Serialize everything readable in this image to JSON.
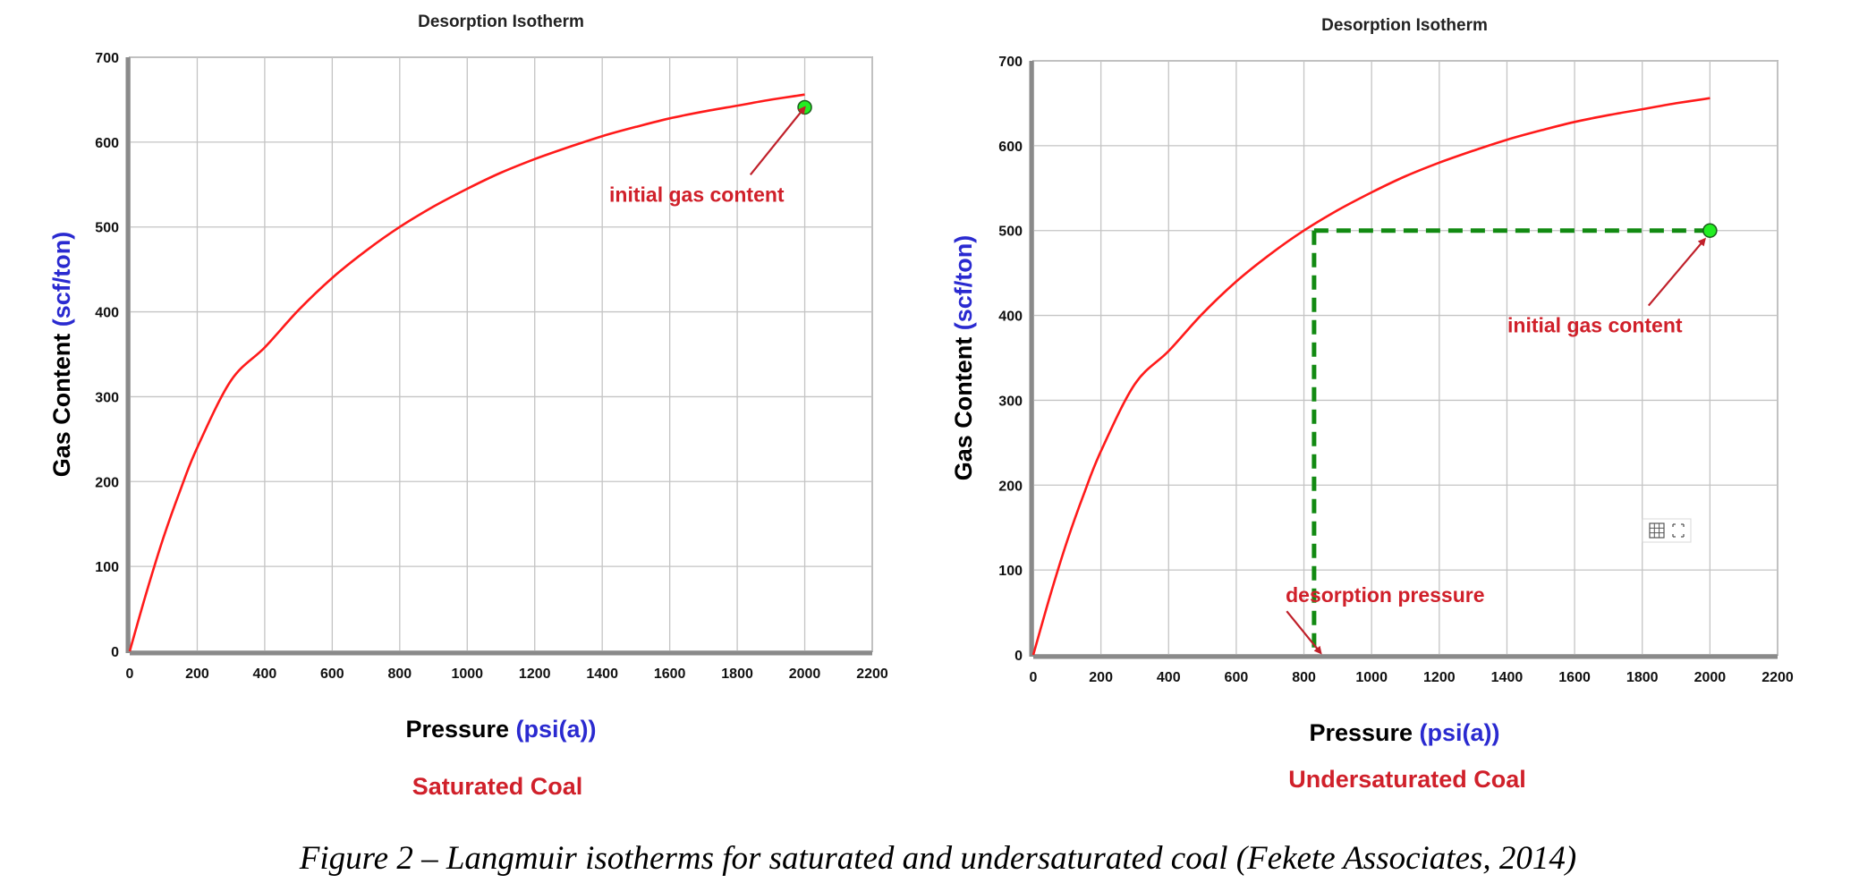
{
  "figure": {
    "caption": "Figure 2 – Langmuir isotherms for saturated and undersaturated coal (Fekete Associates, 2014)"
  },
  "colors": {
    "curve": "#ff1a1a",
    "marker_fill": "#22ee22",
    "guide": "#128a12",
    "annotation": "#d0202a",
    "axis_unit": "#2a2ad0"
  },
  "chart_data": [
    {
      "type": "line",
      "title": "Desorption Isotherm",
      "xlabel": "Pressure",
      "xlabel_unit": "(psi(a))",
      "ylabel": "Gas Content",
      "ylabel_unit": "(scf/ton)",
      "subcaption": "Saturated Coal",
      "xlim": [
        0,
        2200
      ],
      "ylim": [
        0,
        700
      ],
      "xticks": [
        0,
        200,
        400,
        600,
        800,
        1000,
        1200,
        1400,
        1600,
        1800,
        2000,
        2200
      ],
      "yticks": [
        0,
        100,
        200,
        300,
        400,
        500,
        600,
        700
      ],
      "grid": true,
      "series": [
        {
          "x": [
            0,
            50,
            100,
            150,
            200,
            300,
            400,
            500,
            600,
            700,
            800,
            900,
            1000,
            1100,
            1200,
            1300,
            1400,
            1500,
            1600,
            1700,
            1800,
            1900,
            2000
          ],
          "y": [
            0,
            70,
            134,
            190,
            240,
            319,
            358,
            402,
            440,
            472,
            500,
            524,
            545,
            564,
            580,
            594,
            607,
            618,
            628,
            636,
            643,
            650,
            656
          ]
        }
      ],
      "points": [
        {
          "x": 2000,
          "y": 641
        }
      ],
      "guides": [],
      "annotations": [
        {
          "text": "initial gas content",
          "x": 1680,
          "y": 530,
          "target_x": 2000,
          "target_y": 641
        }
      ]
    },
    {
      "type": "line",
      "title": "Desorption Isotherm",
      "xlabel": "Pressure",
      "xlabel_unit": "(psi(a))",
      "ylabel": "Gas Content",
      "ylabel_unit": "(scf/ton)",
      "subcaption": "Undersaturated Coal",
      "xlim": [
        0,
        2200
      ],
      "ylim": [
        0,
        700
      ],
      "xticks": [
        0,
        200,
        400,
        600,
        800,
        1000,
        1200,
        1400,
        1600,
        1800,
        2000,
        2200
      ],
      "yticks": [
        0,
        100,
        200,
        300,
        400,
        500,
        600,
        700
      ],
      "grid": true,
      "series": [
        {
          "x": [
            0,
            50,
            100,
            150,
            200,
            300,
            400,
            500,
            600,
            700,
            800,
            900,
            1000,
            1100,
            1200,
            1300,
            1400,
            1500,
            1600,
            1700,
            1800,
            1900,
            2000
          ],
          "y": [
            0,
            70,
            134,
            190,
            240,
            319,
            358,
            402,
            440,
            472,
            500,
            524,
            545,
            564,
            580,
            594,
            607,
            618,
            628,
            636,
            643,
            650,
            656
          ]
        }
      ],
      "points": [
        {
          "x": 2000,
          "y": 500
        }
      ],
      "guides": [
        {
          "x1": 830,
          "y1": 500,
          "x2": 2000,
          "y2": 500
        },
        {
          "x1": 830,
          "y1": 500,
          "x2": 830,
          "y2": 0
        }
      ],
      "annotations": [
        {
          "text": "initial gas content",
          "x": 1660,
          "y": 380,
          "target_x": 1985,
          "target_y": 490
        },
        {
          "text": "desorption pressure",
          "x": 1040,
          "y": 62,
          "target_x": 850,
          "target_y": 2
        }
      ]
    }
  ]
}
